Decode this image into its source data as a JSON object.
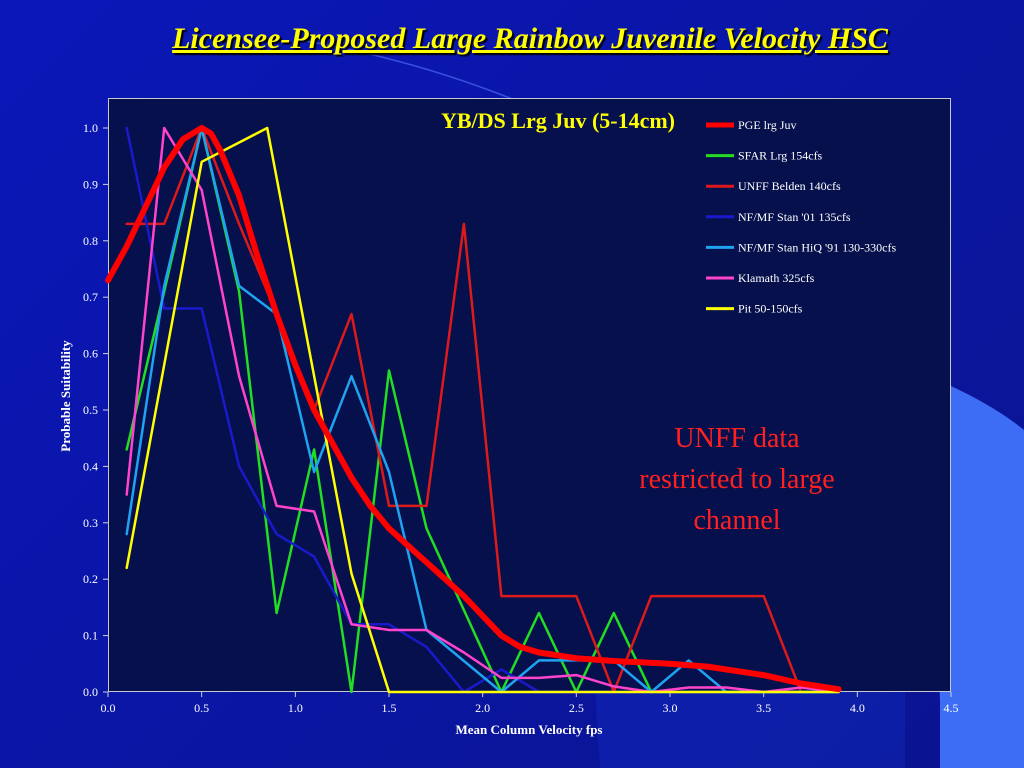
{
  "slide": {
    "title": "Licensee-Proposed Large Rainbow Juvenile Velocity HSC",
    "note": "UNFF data restricted to large channel"
  },
  "chart_data": {
    "type": "line",
    "title": "YB/DS Lrg Juv (5-14cm)",
    "xlabel": "Mean Column Velocity fps",
    "ylabel": "Probable Suitability",
    "xlim": [
      0.0,
      4.5
    ],
    "ylim": [
      0.0,
      1.05
    ],
    "xticks": [
      "0.0",
      "0.5",
      "1.0",
      "1.5",
      "2.0",
      "2.5",
      "3.0",
      "3.5",
      "4.0",
      "4.5"
    ],
    "yticks": [
      "0.0",
      "0.1",
      "0.2",
      "0.3",
      "0.4",
      "0.5",
      "0.6",
      "0.7",
      "0.8",
      "0.9",
      "1.0"
    ],
    "legend_position": "top-right",
    "series": [
      {
        "name": "PGE lrg Juv",
        "color": "#ff0000",
        "width": "heavy",
        "points": [
          [
            0.0,
            0.73
          ],
          [
            0.1,
            0.79
          ],
          [
            0.2,
            0.86
          ],
          [
            0.3,
            0.93
          ],
          [
            0.4,
            0.98
          ],
          [
            0.5,
            1.0
          ],
          [
            0.55,
            0.99
          ],
          [
            0.6,
            0.96
          ],
          [
            0.7,
            0.88
          ],
          [
            0.8,
            0.77
          ],
          [
            0.9,
            0.67
          ],
          [
            1.0,
            0.58
          ],
          [
            1.1,
            0.5
          ],
          [
            1.2,
            0.44
          ],
          [
            1.3,
            0.38
          ],
          [
            1.4,
            0.33
          ],
          [
            1.5,
            0.29
          ],
          [
            1.6,
            0.26
          ],
          [
            1.7,
            0.23
          ],
          [
            1.8,
            0.2
          ],
          [
            1.9,
            0.17
          ],
          [
            2.0,
            0.135
          ],
          [
            2.1,
            0.1
          ],
          [
            2.2,
            0.08
          ],
          [
            2.3,
            0.07
          ],
          [
            2.5,
            0.06
          ],
          [
            2.7,
            0.055
          ],
          [
            3.0,
            0.05
          ],
          [
            3.2,
            0.045
          ],
          [
            3.5,
            0.03
          ],
          [
            3.7,
            0.015
          ],
          [
            3.9,
            0.005
          ]
        ]
      },
      {
        "name": "SFAR Lrg  154cfs",
        "color": "#22dd22",
        "width": "normal",
        "points": [
          [
            0.1,
            0.43
          ],
          [
            0.3,
            0.71
          ],
          [
            0.5,
            1.0
          ],
          [
            0.7,
            0.71
          ],
          [
            0.9,
            0.14
          ],
          [
            1.1,
            0.43
          ],
          [
            1.3,
            0.0
          ],
          [
            1.5,
            0.57
          ],
          [
            1.7,
            0.29
          ],
          [
            2.1,
            0.0
          ],
          [
            2.3,
            0.14
          ],
          [
            2.5,
            0.0
          ],
          [
            2.7,
            0.14
          ],
          [
            2.9,
            0.0
          ],
          [
            3.9,
            0.0
          ]
        ]
      },
      {
        "name": "UNFF Belden 140cfs",
        "color": "#dd1a1a",
        "width": "normal",
        "points": [
          [
            0.1,
            0.83
          ],
          [
            0.3,
            0.83
          ],
          [
            0.5,
            1.0
          ],
          [
            0.7,
            0.83
          ],
          [
            0.9,
            0.67
          ],
          [
            1.1,
            0.5
          ],
          [
            1.3,
            0.67
          ],
          [
            1.5,
            0.33
          ],
          [
            1.7,
            0.33
          ],
          [
            1.9,
            0.83
          ],
          [
            2.1,
            0.17
          ],
          [
            2.5,
            0.17
          ],
          [
            2.7,
            0.0
          ],
          [
            2.9,
            0.17
          ],
          [
            3.5,
            0.17
          ],
          [
            3.7,
            0.0
          ]
        ]
      },
      {
        "name": "NF/MF Stan '01 135cfs",
        "color": "#1a1acc",
        "width": "normal",
        "points": [
          [
            0.1,
            1.0
          ],
          [
            0.3,
            0.68
          ],
          [
            0.5,
            0.68
          ],
          [
            0.7,
            0.4
          ],
          [
            0.9,
            0.28
          ],
          [
            1.1,
            0.24
          ],
          [
            1.3,
            0.12
          ],
          [
            1.5,
            0.12
          ],
          [
            1.7,
            0.08
          ],
          [
            1.9,
            0.0
          ],
          [
            2.1,
            0.04
          ],
          [
            2.3,
            0.0
          ],
          [
            3.9,
            0.0
          ]
        ]
      },
      {
        "name": "NF/MF Stan HiQ '91 130-330cfs",
        "color": "#1fa3f0",
        "width": "normal",
        "points": [
          [
            0.1,
            0.28
          ],
          [
            0.3,
            0.72
          ],
          [
            0.5,
            1.0
          ],
          [
            0.7,
            0.72
          ],
          [
            0.9,
            0.67
          ],
          [
            1.1,
            0.39
          ],
          [
            1.3,
            0.56
          ],
          [
            1.5,
            0.39
          ],
          [
            1.7,
            0.11
          ],
          [
            2.1,
            0.0
          ],
          [
            2.3,
            0.056
          ],
          [
            2.7,
            0.056
          ],
          [
            2.9,
            0.0
          ],
          [
            3.1,
            0.056
          ],
          [
            3.3,
            0.0
          ],
          [
            3.9,
            0.0
          ]
        ]
      },
      {
        "name": "Klamath 325cfs",
        "color": "#ff44cc",
        "width": "normal",
        "points": [
          [
            0.1,
            0.35
          ],
          [
            0.3,
            1.0
          ],
          [
            0.5,
            0.89
          ],
          [
            0.7,
            0.56
          ],
          [
            0.9,
            0.33
          ],
          [
            1.1,
            0.32
          ],
          [
            1.3,
            0.12
          ],
          [
            1.5,
            0.11
          ],
          [
            1.7,
            0.11
          ],
          [
            1.9,
            0.07
          ],
          [
            2.1,
            0.025
          ],
          [
            2.3,
            0.025
          ],
          [
            2.5,
            0.03
          ],
          [
            2.7,
            0.01
          ],
          [
            2.9,
            0.0
          ],
          [
            3.1,
            0.008
          ],
          [
            3.3,
            0.008
          ],
          [
            3.5,
            0.0
          ],
          [
            3.7,
            0.008
          ],
          [
            3.9,
            0.0
          ]
        ]
      },
      {
        "name": "Pit 50-150cfs",
        "color": "#ffff00",
        "width": "normal",
        "points": [
          [
            0.1,
            0.22
          ],
          [
            0.5,
            0.94
          ],
          [
            0.85,
            1.0
          ],
          [
            1.3,
            0.21
          ],
          [
            1.5,
            0.0
          ],
          [
            3.9,
            0.0
          ]
        ]
      }
    ]
  }
}
